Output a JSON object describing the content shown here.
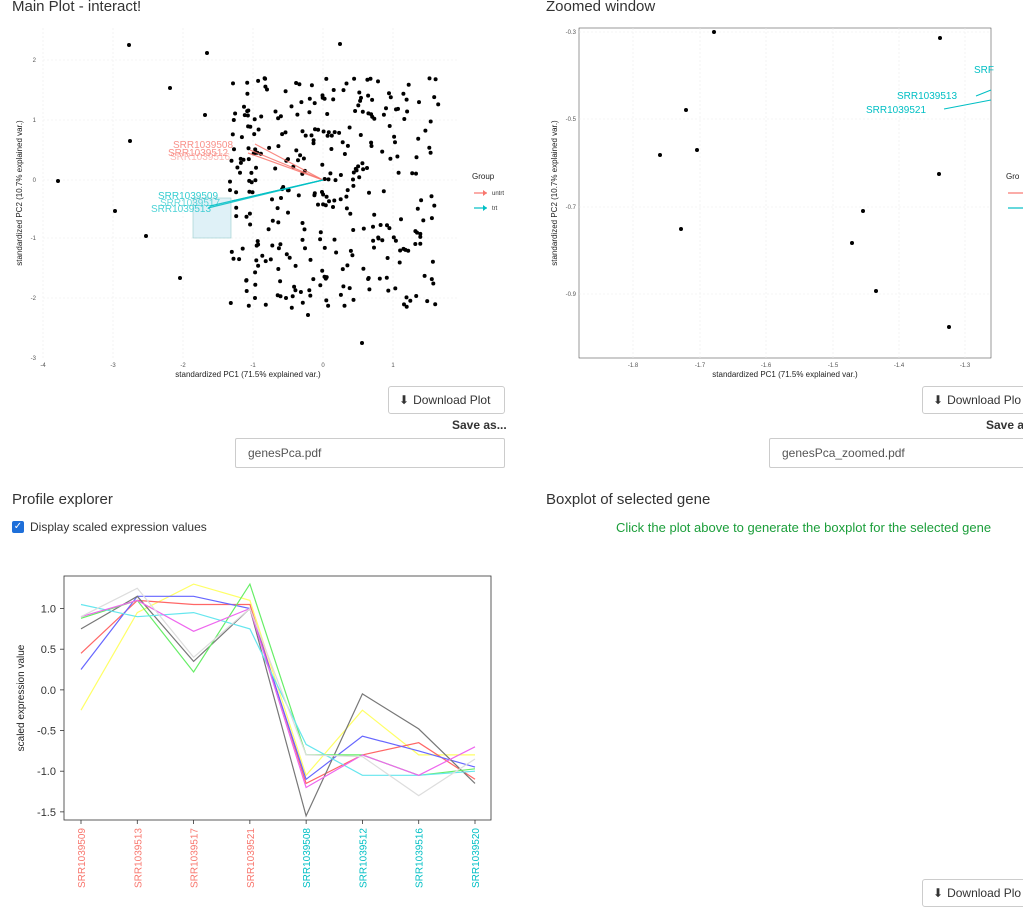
{
  "main_plot": {
    "title": "Main Plot - interact!",
    "xlabel": "standardized PC1 (71.5% explained var.)",
    "ylabel": "standardized PC2 (10.7% explained var.)",
    "x_ticks": [
      "-4",
      "-3",
      "-2",
      "-1",
      "0",
      "1"
    ],
    "y_ticks": [
      "2",
      "1",
      "0",
      "-1",
      "-2",
      "-3"
    ],
    "legend_title": "Group",
    "legend_items": [
      {
        "label": "untrt",
        "color": "#f8766d"
      },
      {
        "label": "trt",
        "color": "#00bfc4"
      }
    ],
    "arrow_labels": [
      {
        "text": "SRR1039508",
        "color": "#f8766d"
      },
      {
        "text": "SRR1039512",
        "color": "#f8766d"
      },
      {
        "text": "SRR1039516",
        "color": "#f8766d"
      },
      {
        "text": "SRR1039509",
        "color": "#00bfc4"
      },
      {
        "text": "SRR1039517",
        "color": "#00bfc4"
      },
      {
        "text": "SRR1039513",
        "color": "#00bfc4"
      }
    ],
    "download_label": "Download Plot",
    "save_as_label": "Save as...",
    "filename": "genesPca.pdf"
  },
  "zoomed": {
    "title": "Zoomed window",
    "xlabel": "standardized PC1 (71.5% explained var.)",
    "ylabel": "standardized PC2 (10.7% explained var.)",
    "x_ticks": [
      "-1.8",
      "-1.7",
      "-1.6",
      "-1.5",
      "-1.4",
      "-1.3"
    ],
    "y_ticks": [
      "-0.3",
      "-0.5",
      "-0.7",
      "-0.9"
    ],
    "arrow_labels": [
      {
        "text": "SRR1039513",
        "color": "#00bfc4"
      },
      {
        "text": "SRR1039521",
        "color": "#00bfc4"
      },
      {
        "text": "SRF",
        "color": "#00bfc4"
      }
    ],
    "legend_title": "Gro",
    "download_label": "Download Plo",
    "save_as_label": "Save a",
    "filename": "genesPca_zoomed.pdf"
  },
  "profile": {
    "title": "Profile explorer",
    "checkbox_label": "Display scaled expression values",
    "checkbox_checked": true,
    "ylabel": "scaled expression value",
    "download_label": "Download Plo"
  },
  "boxplot": {
    "title": "Boxplot of selected gene",
    "message": "Click the plot above to generate the boxplot for the selected gene"
  },
  "chart_data": {
    "type": "line",
    "title": "",
    "xlabel": "",
    "ylabel": "scaled expression value",
    "ylim": [
      -1.6,
      1.4
    ],
    "y_ticks": [
      1.0,
      0.5,
      0.0,
      -0.5,
      -1.0,
      -1.5
    ],
    "y_tick_labels": [
      "1.0",
      "0.5",
      "0.0",
      "-0.5",
      "-1.0",
      "-1.5"
    ],
    "categories": [
      "SRR1039509",
      "SRR1039513",
      "SRR1039517",
      "SRR1039521",
      "SRR1039508",
      "SRR1039512",
      "SRR1039516",
      "SRR1039520"
    ],
    "category_colors": [
      "#f8766d",
      "#f8766d",
      "#f8766d",
      "#f8766d",
      "#00bfc4",
      "#00bfc4",
      "#00bfc4",
      "#00bfc4"
    ],
    "series": [
      {
        "color": "#ffff66",
        "values": [
          -0.25,
          0.95,
          1.3,
          1.1,
          -1.05,
          -0.25,
          -0.8,
          -0.8
        ]
      },
      {
        "color": "#ff6666",
        "values": [
          0.45,
          1.1,
          1.05,
          1.05,
          -1.15,
          -0.8,
          -0.65,
          -1.1
        ]
      },
      {
        "color": "#6666ff",
        "values": [
          0.25,
          1.15,
          1.15,
          1.0,
          -1.1,
          -0.57,
          -0.75,
          -0.95
        ]
      },
      {
        "color": "#777777",
        "values": [
          0.75,
          1.15,
          0.35,
          1.0,
          -1.55,
          -0.05,
          -0.48,
          -1.15
        ]
      },
      {
        "color": "#66ee66",
        "values": [
          0.88,
          1.1,
          0.22,
          1.3,
          -0.8,
          -0.8,
          -1.05,
          -0.97
        ]
      },
      {
        "color": "#66e6ee",
        "values": [
          1.05,
          0.9,
          0.95,
          0.75,
          -0.67,
          -1.05,
          -1.05,
          -1.0
        ]
      },
      {
        "color": "#ee66ee",
        "values": [
          0.9,
          1.1,
          0.72,
          1.0,
          -1.2,
          -0.8,
          -1.05,
          -0.7
        ]
      },
      {
        "color": "#dddddd",
        "values": [
          0.9,
          1.25,
          0.4,
          1.0,
          -0.8,
          -0.82,
          -1.3,
          -0.85
        ]
      }
    ]
  }
}
